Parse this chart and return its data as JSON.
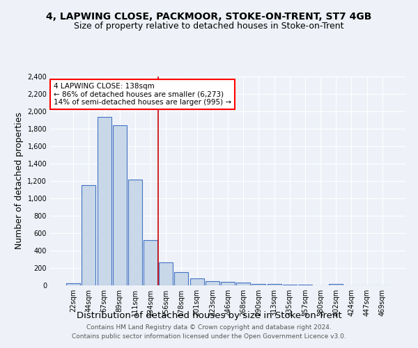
{
  "title": "4, LAPWING CLOSE, PACKMOOR, STOKE-ON-TRENT, ST7 4GB",
  "subtitle": "Size of property relative to detached houses in Stoke-on-Trent",
  "xlabel": "Distribution of detached houses by size in Stoke-on-Trent",
  "ylabel": "Number of detached properties",
  "categories": [
    "22sqm",
    "44sqm",
    "67sqm",
    "89sqm",
    "111sqm",
    "134sqm",
    "156sqm",
    "178sqm",
    "201sqm",
    "223sqm",
    "246sqm",
    "268sqm",
    "290sqm",
    "313sqm",
    "335sqm",
    "357sqm",
    "380sqm",
    "402sqm",
    "424sqm",
    "447sqm",
    "469sqm"
  ],
  "values": [
    25,
    1155,
    1940,
    1840,
    1215,
    520,
    265,
    155,
    80,
    50,
    40,
    35,
    20,
    15,
    8,
    5,
    4,
    20,
    3,
    2,
    2
  ],
  "bar_color": "#c8d8e8",
  "bar_edge_color": "#4472c4",
  "vline_x": 5.5,
  "vline_color": "#cc0000",
  "annotation_text": "4 LAPWING CLOSE: 138sqm\n← 86% of detached houses are smaller (6,273)\n14% of semi-detached houses are larger (995) →",
  "annotation_box_color": "white",
  "annotation_edge_color": "red",
  "ylim": [
    0,
    2400
  ],
  "yticks": [
    0,
    200,
    400,
    600,
    800,
    1000,
    1200,
    1400,
    1600,
    1800,
    2000,
    2200,
    2400
  ],
  "footer_line1": "Contains HM Land Registry data © Crown copyright and database right 2024.",
  "footer_line2": "Contains public sector information licensed under the Open Government Licence v3.0.",
  "background_color": "#eef2f8",
  "grid_color": "white",
  "title_fontsize": 10,
  "subtitle_fontsize": 9,
  "label_fontsize": 9,
  "tick_fontsize": 7,
  "footer_fontsize": 6.5,
  "annotation_fontsize": 7.5
}
